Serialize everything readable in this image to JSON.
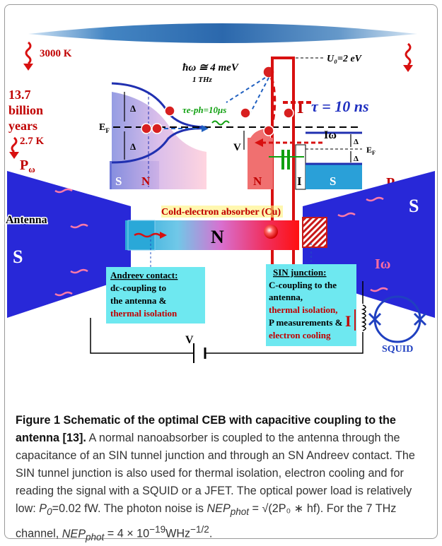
{
  "figure": {
    "temp_cmb": "3000 K",
    "age_line1": "13.7",
    "age_line2": "billion",
    "age_line3": "years",
    "temp_now": "2.7 K",
    "p_omega": "P",
    "p_omega_sub": "ω",
    "photon_energy": "ħω ≅ 4 meV",
    "photon_freq": "1 THz",
    "barrier": "U₀=2 eV",
    "tau": "τ = 10 ns",
    "tau_eph": "τe-ph=10μs",
    "delta": "Δ",
    "fermi": "E",
    "fermi_sub": "F",
    "v_label": "V",
    "i_omega": "Iω",
    "i_label": "I",
    "band_s_left": "S",
    "band_n_left": "N",
    "band_n_right": "N",
    "band_i": "I",
    "band_s_right": "S",
    "antenna": "Antenna",
    "s_left": "S",
    "s_right": "S",
    "absorber_title": "Cold-electron absorber (Cu)",
    "absorber_n": "N",
    "andreev_title": "Andreev contact:",
    "andreev_line2": "dc-coupling to",
    "andreev_line3": "the antenna &",
    "andreev_line4": "thermal isolation",
    "sin_title": "SIN junction:",
    "sin_line2": "C-coupling to the",
    "sin_line3": "antenna,",
    "sin_line4": "thermal isolation,",
    "sin_line5": "P measurements &",
    "sin_line6": "electron cooling",
    "circuit_v": "V",
    "circuit_i": "I",
    "squid": "SQUID"
  },
  "caption": {
    "title": "Figure 1 Schematic of the optimal CEB with capacitive coupling to the antenna [13].",
    "body1": " A normal nanoabsorber is coupled to the antenna through the capacitance of an SIN tunnel junction and through an SN Andreev contact. The SIN tunnel junction is also used for thermal isolation, electron cooling and for reading the signal with a SQUID or a JFET. The optical power load is relatively low:",
    "p0": "P",
    "p0_sub": "0",
    "p0_val": "=0.02 fW. The photon noise is ",
    "nep": "NEP",
    "nep_sub": "phot",
    "eq1": " = √(2P₀ ∗ hf)",
    "body2": ". For the 7 THz channel, ",
    "eq2": " = 4 × 10",
    "eq2_exp": "−19",
    "eq2_unit": "WHz",
    "eq2_unit_exp": "−1/2",
    "end": "."
  }
}
